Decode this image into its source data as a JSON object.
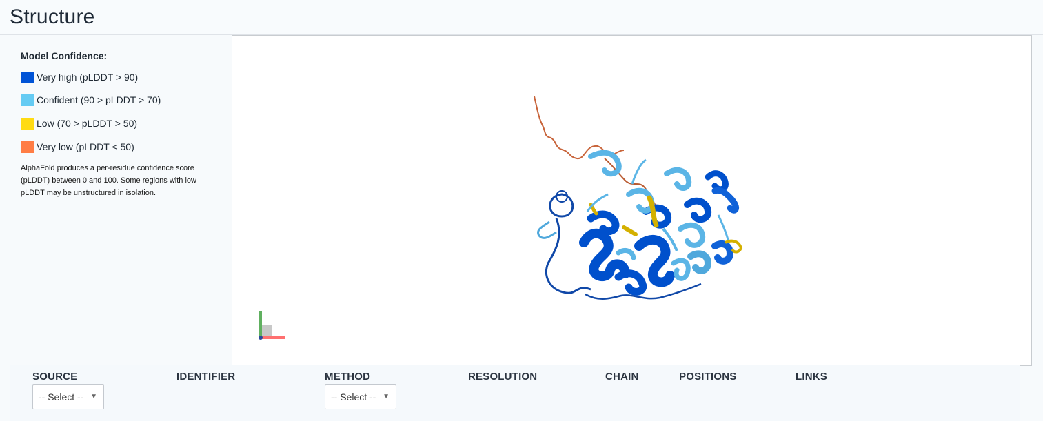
{
  "header": {
    "title": "Structure",
    "info_marker": "i"
  },
  "legend": {
    "title": "Model Confidence:",
    "items": [
      {
        "label": "Very high (pLDDT > 90)",
        "color": "#0053d6"
      },
      {
        "label": "Confident (90 > pLDDT > 70)",
        "color": "#65cbf3"
      },
      {
        "label": "Low (70 > pLDDT > 50)",
        "color": "#ffdb13"
      },
      {
        "label": "Very low (pLDDT < 50)",
        "color": "#ff7d45"
      }
    ],
    "description": "AlphaFold produces a per-residue confidence score (pLDDT) between 0 and 100. Some regions with low pLDDT may be unstructured in isolation."
  },
  "table": {
    "columns": [
      "SOURCE",
      "IDENTIFIER",
      "METHOD",
      "RESOLUTION",
      "CHAIN",
      "POSITIONS",
      "LINKS"
    ],
    "source_select": {
      "value": "-- Select --"
    },
    "method_select": {
      "value": "-- Select --"
    }
  }
}
